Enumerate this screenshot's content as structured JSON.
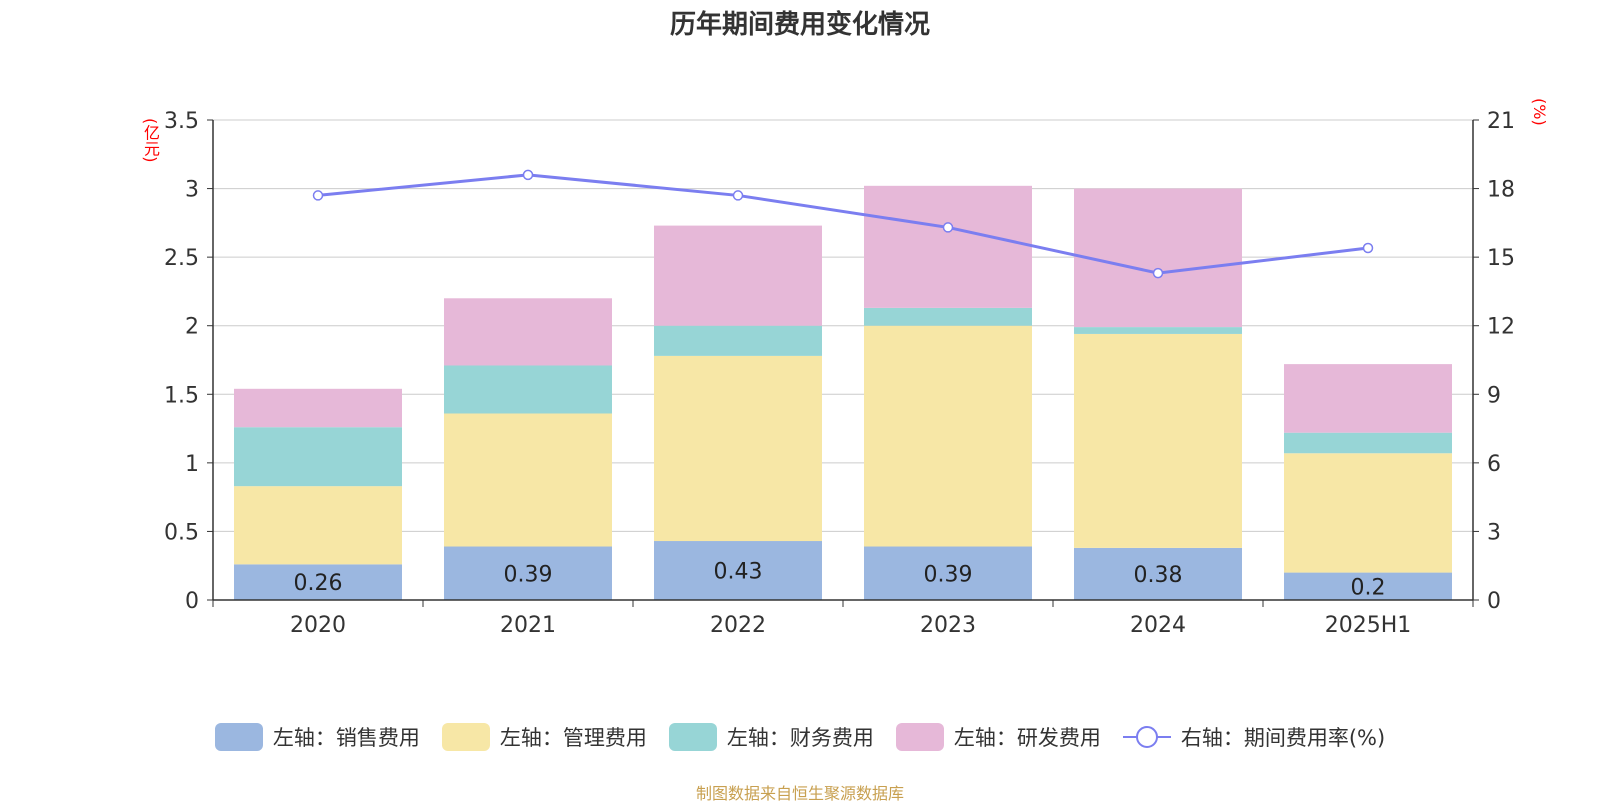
{
  "title": "历年期间费用变化情况",
  "left_unit": "(亿元)",
  "right_unit": "(%)",
  "source": "制图数据来自恒生聚源数据库",
  "colors": {
    "sales": "#9bb7e0",
    "admin": "#f7e7a6",
    "finance": "#97d5d6",
    "rd": "#e6b8d8",
    "rate": "#7b7ef0",
    "grid": "#cccccc",
    "axis": "#333333"
  },
  "chart_data": {
    "type": "bar",
    "stacked": true,
    "categories": [
      "2020",
      "2021",
      "2022",
      "2023",
      "2024",
      "2025H1"
    ],
    "series": [
      {
        "name": "左轴：销售费用",
        "axis": "left",
        "color_key": "sales",
        "values": [
          0.26,
          0.39,
          0.43,
          0.39,
          0.38,
          0.2
        ],
        "labels": [
          "0.26",
          "0.39",
          "0.43",
          "0.39",
          "0.38",
          "0.2"
        ]
      },
      {
        "name": "左轴：管理费用",
        "axis": "left",
        "color_key": "admin",
        "values": [
          0.57,
          0.97,
          1.35,
          1.61,
          1.56,
          0.87
        ]
      },
      {
        "name": "左轴：财务费用",
        "axis": "left",
        "color_key": "finance",
        "values": [
          0.43,
          0.35,
          0.22,
          0.13,
          0.05,
          0.15
        ]
      },
      {
        "name": "左轴：研发费用",
        "axis": "left",
        "color_key": "rd",
        "values": [
          0.28,
          0.49,
          0.73,
          0.89,
          1.01,
          0.5
        ]
      },
      {
        "name": "右轴：期间费用率(%)",
        "type": "line",
        "axis": "right",
        "color_key": "rate",
        "values": [
          17.7,
          18.6,
          17.7,
          16.3,
          14.3,
          15.4
        ]
      }
    ],
    "y_left": {
      "ylim": [
        0,
        3.5
      ],
      "ticks": [
        "0",
        "0.5",
        "1",
        "1.5",
        "2",
        "2.5",
        "3",
        "3.5"
      ]
    },
    "y_right": {
      "ylim": [
        0,
        21
      ],
      "ticks": [
        "0",
        "3",
        "6",
        "9",
        "12",
        "15",
        "18",
        "21"
      ]
    },
    "grid": true,
    "legend_position": "bottom"
  }
}
